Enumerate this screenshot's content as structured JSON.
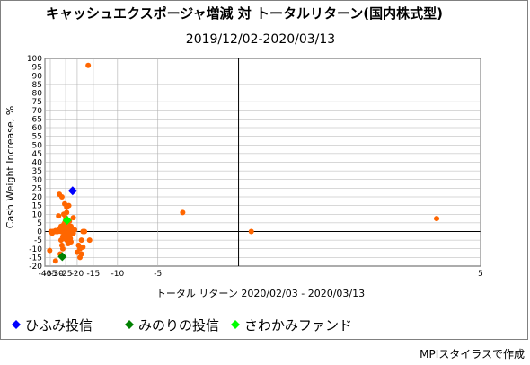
{
  "chart_data": {
    "type": "scatter",
    "title": "キャッシュエクスポージャ増減 対 トータルリターン(国内株式型)",
    "subtitle": "2019/12/02-2020/03/13",
    "xlabel": "トータル リターン 2020/02/03 - 2020/03/13",
    "ylabel": "Cash Weight Increase, %",
    "xlim": [
      -40,
      5
    ],
    "ylim": [
      -20,
      100
    ],
    "x_scale": "reciprocal",
    "xticks": [
      -40,
      -35,
      -30,
      -25,
      -20,
      -15,
      -10,
      -5,
      5
    ],
    "yticks": [
      -20,
      -15,
      -10,
      -5,
      0,
      5,
      10,
      15,
      20,
      25,
      30,
      35,
      40,
      45,
      50,
      55,
      60,
      65,
      70,
      75,
      80,
      85,
      90,
      95,
      100
    ],
    "grid": true,
    "legend_position": "bottom-left",
    "series": [
      {
        "name": "",
        "color": "#ff6600",
        "marker": "circle",
        "points": [
          [
            -16.4,
            96
          ],
          [
            -28.5,
            21.5
          ],
          [
            -27,
            20
          ],
          [
            -24.5,
            14
          ],
          [
            -23.5,
            15
          ],
          [
            -24.5,
            11
          ],
          [
            -25.5,
            16
          ],
          [
            -29,
            9
          ],
          [
            -26,
            10
          ],
          [
            -25,
            8
          ],
          [
            -21.5,
            8
          ],
          [
            -3,
            11
          ],
          [
            4.5,
            7.5
          ],
          [
            -35.5,
            -11
          ],
          [
            -34.5,
            0
          ],
          [
            -33.5,
            -1
          ],
          [
            -33,
            0
          ],
          [
            -32.5,
            0
          ],
          [
            -32,
            0
          ],
          [
            -31.5,
            0
          ],
          [
            -31,
            0.5
          ],
          [
            -30.5,
            0
          ],
          [
            -30,
            0
          ],
          [
            -29.5,
            0
          ],
          [
            -28.8,
            0.5
          ],
          [
            -28.3,
            1
          ],
          [
            -28,
            2
          ],
          [
            -27.5,
            0
          ],
          [
            -27,
            1
          ],
          [
            -26.8,
            3
          ],
          [
            -26.5,
            2
          ],
          [
            -26,
            4
          ],
          [
            -25.8,
            1
          ],
          [
            -25.5,
            5
          ],
          [
            -25.2,
            3
          ],
          [
            -25,
            6
          ],
          [
            -24.8,
            2
          ],
          [
            -24.5,
            4
          ],
          [
            -24.2,
            1
          ],
          [
            -24,
            5
          ],
          [
            -23.8,
            3
          ],
          [
            -23.5,
            2
          ],
          [
            -23.2,
            6
          ],
          [
            -23,
            1
          ],
          [
            -22.5,
            3
          ],
          [
            -22,
            0
          ],
          [
            -21.5,
            -1
          ],
          [
            -21,
            1
          ],
          [
            -26.5,
            -3
          ],
          [
            -26,
            -1
          ],
          [
            -25.5,
            -4
          ],
          [
            -25,
            -2
          ],
          [
            -24.5,
            -3
          ],
          [
            -24,
            -1
          ],
          [
            -23.5,
            -4
          ],
          [
            -23,
            -2
          ],
          [
            -27.5,
            -5
          ],
          [
            -27,
            -8
          ],
          [
            -26.5,
            -10
          ],
          [
            -22.5,
            -6
          ],
          [
            -28,
            -13
          ],
          [
            -31,
            -17
          ],
          [
            -19.5,
            -8
          ],
          [
            -19,
            -10
          ],
          [
            -18.5,
            -13
          ],
          [
            -19,
            -15
          ],
          [
            -18.5,
            -5
          ],
          [
            -17.5,
            0
          ],
          [
            -16,
            -5
          ],
          [
            -18,
            -9
          ],
          [
            -20,
            -12
          ],
          [
            -18,
            0
          ],
          [
            -27.5,
            3
          ],
          [
            -24.5,
            -5
          ],
          [
            -23.8,
            -7
          ],
          [
            -22.8,
            -4
          ],
          [
            0.5,
            0
          ]
        ]
      },
      {
        "name": "ひふみ投信",
        "color": "#0000ff",
        "marker": "diamond",
        "points": [
          [
            -21.8,
            23.5
          ]
        ]
      },
      {
        "name": "みのりの投信",
        "color": "#008000",
        "marker": "diamond",
        "points": [
          [
            -26.8,
            -14.5
          ]
        ]
      },
      {
        "name": "さわかみファンド",
        "color": "#00ff00",
        "marker": "diamond",
        "points": [
          [
            -24.3,
            6.5
          ]
        ]
      }
    ]
  },
  "credit": "MPIスタイラスで作成"
}
